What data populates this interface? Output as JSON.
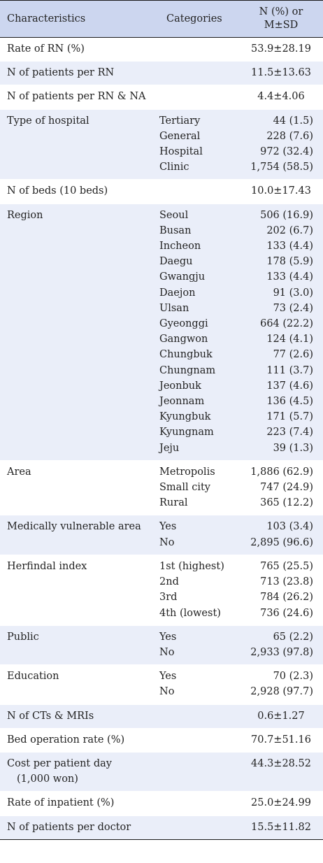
{
  "header": {
    "col1": "Characteristics",
    "col2": "Categories",
    "col3_line1": "N (%) or",
    "col3_line2": "M±SD"
  },
  "rows": [
    {
      "characteristic": [
        "Rate of RN (%)"
      ],
      "categories": [],
      "values": [
        "53.9±28.19"
      ]
    },
    {
      "characteristic": [
        "N of patients per RN"
      ],
      "categories": [],
      "values": [
        "11.5±13.63"
      ]
    },
    {
      "characteristic": [
        "N of patients per RN & NA"
      ],
      "categories": [],
      "values": [
        "4.4±4.06"
      ]
    },
    {
      "characteristic": [
        "Type of hospital"
      ],
      "categories": [
        "Tertiary",
        "General",
        "Hospital",
        "Clinic"
      ],
      "values": [
        "44 (1.5)",
        "228 (7.6)",
        "972 (32.4)",
        "1,754 (58.5)"
      ]
    },
    {
      "characteristic": [
        "N of beds (10 beds)"
      ],
      "categories": [],
      "values": [
        "10.0±17.43"
      ]
    },
    {
      "characteristic": [
        "Region"
      ],
      "categories": [
        "Seoul",
        "Busan",
        "Incheon",
        "Daegu",
        "Gwangju",
        "Daejon",
        "Ulsan",
        "Gyeonggi",
        "Gangwon",
        "Chungbuk",
        "Chungnam",
        "Jeonbuk",
        "Jeonnam",
        "Kyungbuk",
        "Kyungnam",
        "Jeju"
      ],
      "values": [
        "506 (16.9)",
        "202 (6.7)",
        "133 (4.4)",
        "178 (5.9)",
        "133 (4.4)",
        "91 (3.0)",
        "73 (2.4)",
        "664 (22.2)",
        "124 (4.1)",
        "77 (2.6)",
        "111 (3.7)",
        "137 (4.6)",
        "136 (4.5)",
        "171 (5.7)",
        "223 (7.4)",
        "39 (1.3)"
      ]
    },
    {
      "characteristic": [
        "Area"
      ],
      "categories": [
        "Metropolis",
        "Small city",
        "Rural"
      ],
      "values": [
        "1,886 (62.9)",
        "747 (24.9)",
        "365 (12.2)"
      ]
    },
    {
      "characteristic": [
        "Medically vulnerable area"
      ],
      "categories": [
        "Yes",
        "No"
      ],
      "values": [
        "103 (3.4)",
        "2,895 (96.6)"
      ]
    },
    {
      "characteristic": [
        "Herfindal index"
      ],
      "categories": [
        "1st (highest)",
        "2nd",
        "3rd",
        "4th (lowest)"
      ],
      "values": [
        "765 (25.5)",
        "713 (23.8)",
        "784 (26.2)",
        "736 (24.6)"
      ]
    },
    {
      "characteristic": [
        "Public"
      ],
      "categories": [
        "Yes",
        "No"
      ],
      "values": [
        "65 (2.2)",
        "2,933 (97.8)"
      ]
    },
    {
      "characteristic": [
        "Education"
      ],
      "categories": [
        "Yes",
        "No"
      ],
      "values": [
        "70 (2.3)",
        "2,928 (97.7)"
      ]
    },
    {
      "characteristic": [
        "N of CTs & MRIs"
      ],
      "categories": [],
      "values": [
        "0.6±1.27"
      ]
    },
    {
      "characteristic": [
        "Bed operation rate (%)"
      ],
      "categories": [],
      "values": [
        "70.7±51.16"
      ]
    },
    {
      "characteristic": [
        "Cost per patient day",
        "(1,000 won)"
      ],
      "categories": [],
      "values": [
        "44.3±28.52"
      ]
    },
    {
      "characteristic": [
        "Rate of inpatient (%)"
      ],
      "categories": [],
      "values": [
        "25.0±24.99"
      ]
    },
    {
      "characteristic": [
        "N of patients per doctor"
      ],
      "categories": [],
      "values": [
        "15.5±11.82"
      ]
    }
  ]
}
